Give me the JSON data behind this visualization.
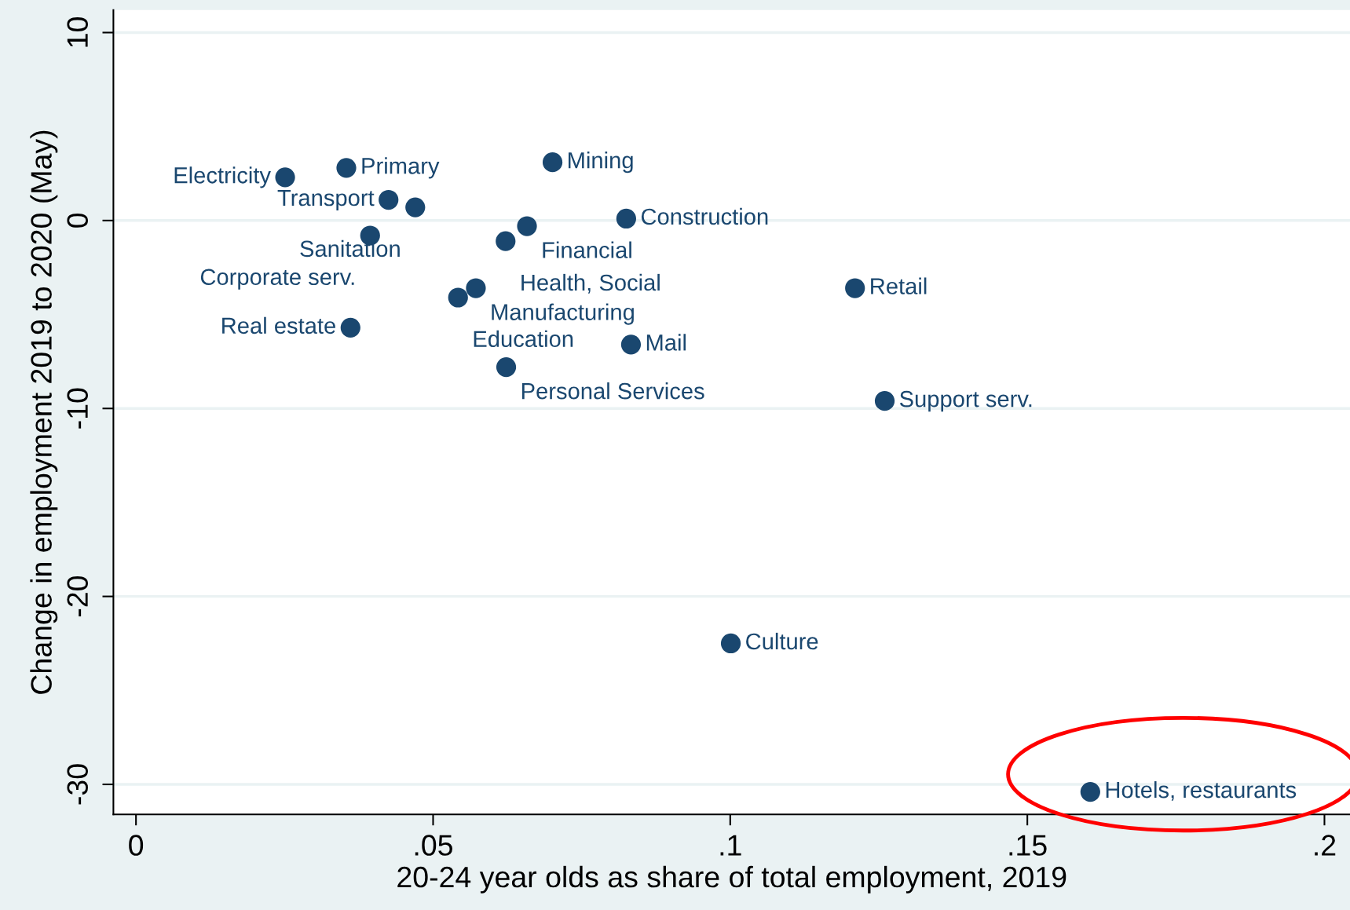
{
  "chart_data": {
    "type": "scatter",
    "xlabel": "20-24 year olds as share of total employment, 2019",
    "ylabel": "Change in employment 2019 to 2020 (May)",
    "series": [
      {
        "color": "#1a476f",
        "x": [
          0.0251,
          0.0354,
          0.0425,
          0.047,
          0.0394,
          0.0658,
          0.0825,
          0.0622,
          0.0701,
          0.0572,
          0.0542,
          0.0361,
          0.0833,
          0.0623,
          0.121,
          0.126,
          0.1001,
          0.1606
        ],
        "values": [
          2.3,
          2.8,
          1.1,
          0.7,
          -0.8,
          -0.3,
          0.1,
          -1.1,
          3.1,
          -3.6,
          -4.1,
          -5.7,
          -6.6,
          -7.8,
          -3.6,
          -9.6,
          -22.5,
          -30.4
        ]
      }
    ],
    "annotations": [
      {
        "text": "Electricity",
        "x": 0.0251,
        "y": 2.3
      },
      {
        "text": "Primary",
        "x": 0.0354,
        "y": 2.8
      },
      {
        "text": "Transport",
        "x": 0.0425,
        "y": 1.1
      },
      {
        "text": "Sanitation",
        "x": 0.047,
        "y": 0.7
      },
      {
        "text": "Corporate serv.",
        "x": 0.0394,
        "y": -0.8
      },
      {
        "text": "Financial",
        "x": 0.0658,
        "y": -0.3
      },
      {
        "text": "Construction",
        "x": 0.0825,
        "y": 0.1
      },
      {
        "text": "Health, Social",
        "x": 0.0622,
        "y": -1.1
      },
      {
        "text": "Mining",
        "x": 0.0701,
        "y": 3.1
      },
      {
        "text": "Manufacturing",
        "x": 0.0572,
        "y": -3.6
      },
      {
        "text": "Education",
        "x": 0.0542,
        "y": -4.1
      },
      {
        "text": "Real estate",
        "x": 0.0361,
        "y": -5.7
      },
      {
        "text": "Mail",
        "x": 0.0833,
        "y": -6.6
      },
      {
        "text": "Personal Services",
        "x": 0.0623,
        "y": -7.8
      },
      {
        "text": "Retail",
        "x": 0.121,
        "y": -3.6
      },
      {
        "text": "Support serv.",
        "x": 0.126,
        "y": -9.6
      },
      {
        "text": "Culture",
        "x": 0.1001,
        "y": -22.5
      },
      {
        "text": "Hotels, restaurants",
        "x": 0.1606,
        "y": -30.4
      }
    ],
    "xlim": [
      -0.0038,
      0.2043
    ],
    "ylim": [
      -31.6,
      11.2
    ],
    "xticks": [
      0,
      {
        "value": 0.05,
        "label": ".05"
      },
      {
        "value": 0.1,
        "label": ".1"
      },
      {
        "value": 0.15,
        "label": ".15"
      },
      {
        "value": 0.2,
        "label": ".2"
      }
    ],
    "yticks": [
      -30,
      -20,
      -10,
      0,
      10
    ],
    "grid": "y",
    "marker": "circle",
    "legend": false
  }
}
